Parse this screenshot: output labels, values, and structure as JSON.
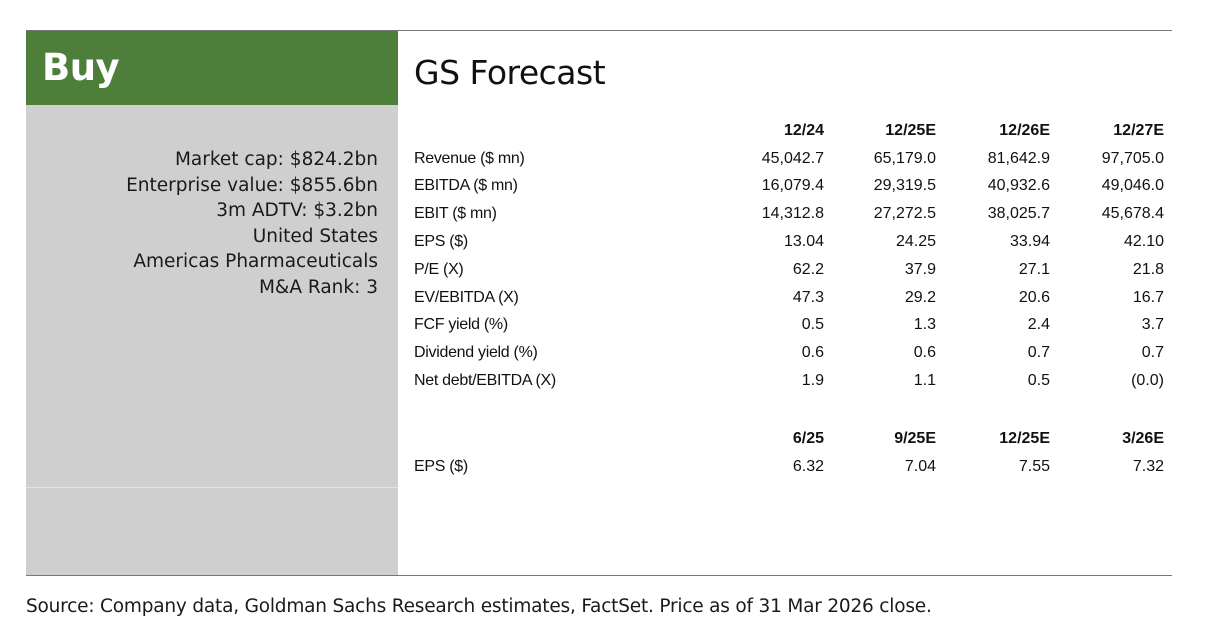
{
  "rating": "Buy",
  "info": [
    "Market cap: $824.2bn",
    "Enterprise value: $855.6bn",
    "3m ADTV: $3.2bn",
    "United States",
    "Americas Pharmaceuticals",
    "M&A Rank: 3"
  ],
  "forecast": {
    "title": "GS Forecast",
    "annual_headers": [
      "12/24",
      "12/25E",
      "12/26E",
      "12/27E"
    ],
    "annual_rows": [
      {
        "label": "Revenue ($ mn)",
        "values": [
          "45,042.7",
          "65,179.0",
          "81,642.9",
          "97,705.0"
        ]
      },
      {
        "label": "EBITDA ($ mn)",
        "values": [
          "16,079.4",
          "29,319.5",
          "40,932.6",
          "49,046.0"
        ]
      },
      {
        "label": "EBIT ($ mn)",
        "values": [
          "14,312.8",
          "27,272.5",
          "38,025.7",
          "45,678.4"
        ]
      },
      {
        "label": "EPS ($)",
        "values": [
          "13.04",
          "24.25",
          "33.94",
          "42.10"
        ]
      },
      {
        "label": "P/E (X)",
        "values": [
          "62.2",
          "37.9",
          "27.1",
          "21.8"
        ]
      },
      {
        "label": "EV/EBITDA (X)",
        "values": [
          "47.3",
          "29.2",
          "20.6",
          "16.7"
        ]
      },
      {
        "label": "FCF yield (%)",
        "values": [
          "0.5",
          "1.3",
          "2.4",
          "3.7"
        ]
      },
      {
        "label": "Dividend yield (%)",
        "values": [
          "0.6",
          "0.6",
          "0.7",
          "0.7"
        ]
      },
      {
        "label": "Net debt/EBITDA (X)",
        "values": [
          "1.9",
          "1.1",
          "0.5",
          "(0.0)"
        ]
      }
    ],
    "quarterly_headers": [
      "6/25",
      "9/25E",
      "12/25E",
      "3/26E"
    ],
    "quarterly_rows": [
      {
        "label": "EPS ($)",
        "values": [
          "6.32",
          "7.04",
          "7.55",
          "7.32"
        ]
      }
    ]
  },
  "source": "Source: Company data, Goldman Sachs Research estimates, FactSet. Price as of 31 Mar 2026 close."
}
